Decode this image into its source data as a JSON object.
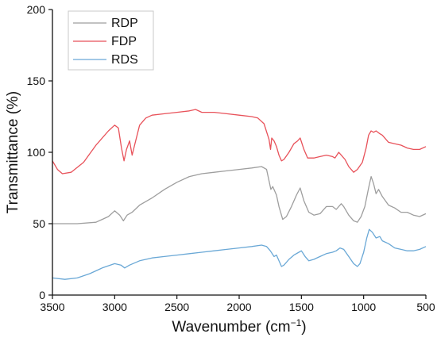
{
  "chart_data": {
    "type": "line",
    "xlabel": "Wavenumber (cm",
    "xlabel_sup": "−1",
    "xlabel_end": ")",
    "ylabel": "Transmittance (%)",
    "xlim": [
      3500,
      500
    ],
    "ylim": [
      0,
      200
    ],
    "x_reversed": true,
    "x_ticks": [
      3500,
      3000,
      2500,
      2000,
      1500,
      1000,
      500
    ],
    "y_ticks": [
      0,
      50,
      100,
      150,
      200
    ],
    "grid": false,
    "legend_position": "top-left",
    "series": [
      {
        "name": "RDP",
        "color": "#9e9e9e",
        "points": [
          [
            3500,
            50
          ],
          [
            3300,
            50
          ],
          [
            3150,
            51
          ],
          [
            3050,
            55
          ],
          [
            3000,
            59
          ],
          [
            2960,
            56
          ],
          [
            2930,
            52
          ],
          [
            2900,
            56
          ],
          [
            2860,
            58
          ],
          [
            2800,
            63
          ],
          [
            2700,
            68
          ],
          [
            2600,
            74
          ],
          [
            2500,
            79
          ],
          [
            2400,
            83
          ],
          [
            2300,
            85
          ],
          [
            2200,
            86
          ],
          [
            2100,
            87
          ],
          [
            2000,
            88
          ],
          [
            1900,
            89
          ],
          [
            1820,
            90
          ],
          [
            1780,
            88
          ],
          [
            1760,
            80
          ],
          [
            1745,
            74
          ],
          [
            1730,
            76
          ],
          [
            1700,
            70
          ],
          [
            1680,
            62
          ],
          [
            1650,
            53
          ],
          [
            1620,
            55
          ],
          [
            1580,
            62
          ],
          [
            1540,
            70
          ],
          [
            1510,
            75
          ],
          [
            1480,
            66
          ],
          [
            1440,
            58
          ],
          [
            1400,
            56
          ],
          [
            1350,
            57
          ],
          [
            1300,
            62
          ],
          [
            1250,
            62
          ],
          [
            1220,
            60
          ],
          [
            1180,
            64
          ],
          [
            1160,
            62
          ],
          [
            1120,
            56
          ],
          [
            1080,
            52
          ],
          [
            1050,
            51
          ],
          [
            1020,
            55
          ],
          [
            990,
            62
          ],
          [
            960,
            75
          ],
          [
            940,
            83
          ],
          [
            920,
            78
          ],
          [
            900,
            71
          ],
          [
            880,
            74
          ],
          [
            850,
            69
          ],
          [
            800,
            63
          ],
          [
            750,
            61
          ],
          [
            700,
            58
          ],
          [
            650,
            58
          ],
          [
            600,
            56
          ],
          [
            550,
            55
          ],
          [
            500,
            57
          ]
        ]
      },
      {
        "name": "FDP",
        "color": "#e8525a",
        "points": [
          [
            3500,
            94
          ],
          [
            3460,
            88
          ],
          [
            3420,
            85
          ],
          [
            3350,
            86
          ],
          [
            3250,
            93
          ],
          [
            3150,
            105
          ],
          [
            3050,
            115
          ],
          [
            3000,
            119
          ],
          [
            2970,
            117
          ],
          [
            2945,
            103
          ],
          [
            2925,
            94
          ],
          [
            2905,
            102
          ],
          [
            2880,
            108
          ],
          [
            2860,
            98
          ],
          [
            2840,
            105
          ],
          [
            2800,
            119
          ],
          [
            2750,
            124
          ],
          [
            2700,
            126
          ],
          [
            2600,
            127
          ],
          [
            2500,
            128
          ],
          [
            2400,
            129
          ],
          [
            2350,
            130
          ],
          [
            2300,
            128
          ],
          [
            2200,
            128
          ],
          [
            2100,
            127
          ],
          [
            2000,
            126
          ],
          [
            1900,
            125
          ],
          [
            1850,
            124
          ],
          [
            1800,
            120
          ],
          [
            1760,
            109
          ],
          [
            1748,
            102
          ],
          [
            1738,
            110
          ],
          [
            1720,
            108
          ],
          [
            1700,
            104
          ],
          [
            1680,
            98
          ],
          [
            1660,
            94
          ],
          [
            1640,
            95
          ],
          [
            1600,
            100
          ],
          [
            1560,
            106
          ],
          [
            1530,
            108
          ],
          [
            1510,
            110
          ],
          [
            1480,
            102
          ],
          [
            1450,
            96
          ],
          [
            1400,
            96
          ],
          [
            1350,
            97
          ],
          [
            1300,
            98
          ],
          [
            1250,
            97
          ],
          [
            1230,
            96
          ],
          [
            1200,
            100
          ],
          [
            1180,
            98
          ],
          [
            1150,
            95
          ],
          [
            1120,
            90
          ],
          [
            1080,
            86
          ],
          [
            1050,
            88
          ],
          [
            1010,
            93
          ],
          [
            980,
            103
          ],
          [
            960,
            112
          ],
          [
            940,
            115
          ],
          [
            920,
            114
          ],
          [
            900,
            115
          ],
          [
            870,
            113
          ],
          [
            850,
            112
          ],
          [
            800,
            107
          ],
          [
            750,
            106
          ],
          [
            700,
            105
          ],
          [
            650,
            103
          ],
          [
            600,
            102
          ],
          [
            550,
            102
          ],
          [
            500,
            104
          ]
        ]
      },
      {
        "name": "RDS",
        "color": "#6aa8d6",
        "points": [
          [
            3500,
            12
          ],
          [
            3400,
            11
          ],
          [
            3300,
            12
          ],
          [
            3200,
            15
          ],
          [
            3100,
            19
          ],
          [
            3000,
            22
          ],
          [
            2950,
            21
          ],
          [
            2920,
            19
          ],
          [
            2880,
            21
          ],
          [
            2800,
            24
          ],
          [
            2700,
            26
          ],
          [
            2600,
            27
          ],
          [
            2500,
            28
          ],
          [
            2400,
            29
          ],
          [
            2300,
            30
          ],
          [
            2200,
            31
          ],
          [
            2100,
            32
          ],
          [
            2000,
            33
          ],
          [
            1900,
            34
          ],
          [
            1820,
            35
          ],
          [
            1780,
            34
          ],
          [
            1750,
            31
          ],
          [
            1720,
            27
          ],
          [
            1700,
            28
          ],
          [
            1680,
            24
          ],
          [
            1660,
            20
          ],
          [
            1640,
            21
          ],
          [
            1600,
            25
          ],
          [
            1560,
            28
          ],
          [
            1520,
            30
          ],
          [
            1500,
            31
          ],
          [
            1470,
            27
          ],
          [
            1440,
            24
          ],
          [
            1400,
            25
          ],
          [
            1350,
            27
          ],
          [
            1300,
            29
          ],
          [
            1250,
            30
          ],
          [
            1220,
            31
          ],
          [
            1190,
            33
          ],
          [
            1160,
            32
          ],
          [
            1120,
            27
          ],
          [
            1080,
            22
          ],
          [
            1050,
            20
          ],
          [
            1030,
            22
          ],
          [
            1000,
            30
          ],
          [
            975,
            40
          ],
          [
            955,
            46
          ],
          [
            930,
            44
          ],
          [
            900,
            40
          ],
          [
            870,
            41
          ],
          [
            850,
            38
          ],
          [
            800,
            36
          ],
          [
            750,
            33
          ],
          [
            700,
            32
          ],
          [
            650,
            31
          ],
          [
            600,
            31
          ],
          [
            550,
            32
          ],
          [
            500,
            34
          ]
        ]
      }
    ]
  }
}
